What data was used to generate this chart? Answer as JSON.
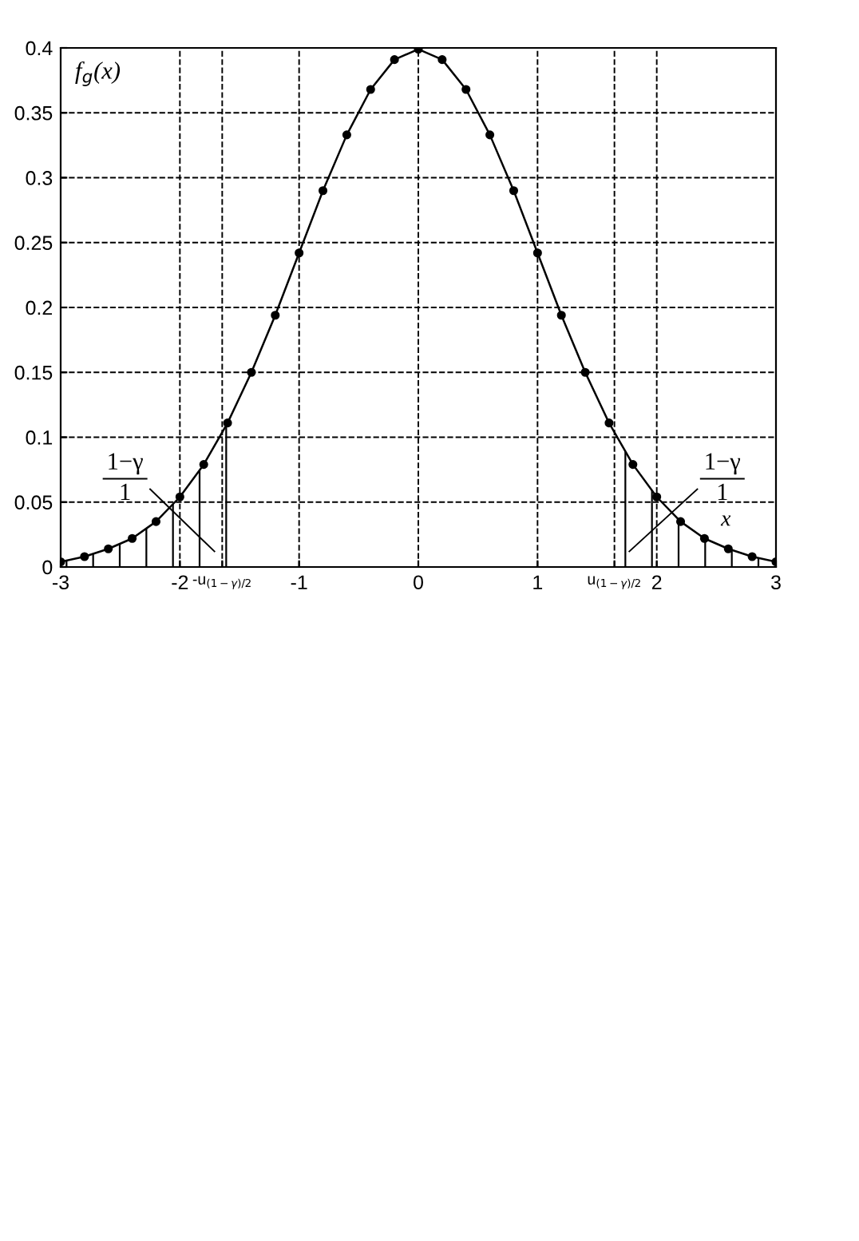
{
  "chart_data": {
    "type": "line",
    "xlabel": "x",
    "ylabel": "f$_{g}$(x)",
    "x": [
      -3,
      -2.8,
      -2.6,
      -2.4,
      -2.2,
      -2,
      -1.8,
      -1.6,
      -1.4,
      -1.2,
      -1,
      -0.8,
      -0.6,
      -0.4,
      -0.2,
      0,
      0.2,
      0.4,
      0.6,
      0.8,
      1,
      1.2,
      1.4,
      1.6,
      1.8,
      2,
      2.2,
      2.4,
      2.6,
      2.8,
      3
    ],
    "series": [
      {
        "color": "#000000",
        "values": [
          0.004,
          0.008,
          0.014,
          0.022,
          0.035,
          0.054,
          0.079,
          0.111,
          0.15,
          0.194,
          0.242,
          0.29,
          0.333,
          0.368,
          0.391,
          0.399,
          0.391,
          0.368,
          0.333,
          0.29,
          0.242,
          0.194,
          0.15,
          0.111,
          0.079,
          0.054,
          0.035,
          0.022,
          0.014,
          0.008,
          0.004
        ]
      }
    ],
    "marker": "circle",
    "line_style": "solid",
    "xlim": [
      -3,
      3
    ],
    "ylim": [
      0,
      0.4
    ],
    "xticks": [
      -3,
      -2,
      {
        "value": -1.645,
        "label": "-u$_{(1−γ)/2}$"
      },
      -1,
      0,
      1,
      {
        "value": 1.645,
        "label": "u$_{(1−γ)/2}$"
      },
      2,
      3
    ],
    "yticks": [
      0,
      0.05,
      0.1,
      0.15,
      0.2,
      0.25,
      0.3,
      0.35,
      0.4
    ],
    "grid": true,
    "bands": [
      {
        "axis": "x",
        "from": -3,
        "to": -1.6,
        "color": "#000000"
      },
      {
        "axis": "x",
        "from": 1.6,
        "to": 3,
        "color": "#000000"
      }
    ],
    "annotations": [
      "1−γ\n1",
      "1−γ\n1"
    ]
  }
}
